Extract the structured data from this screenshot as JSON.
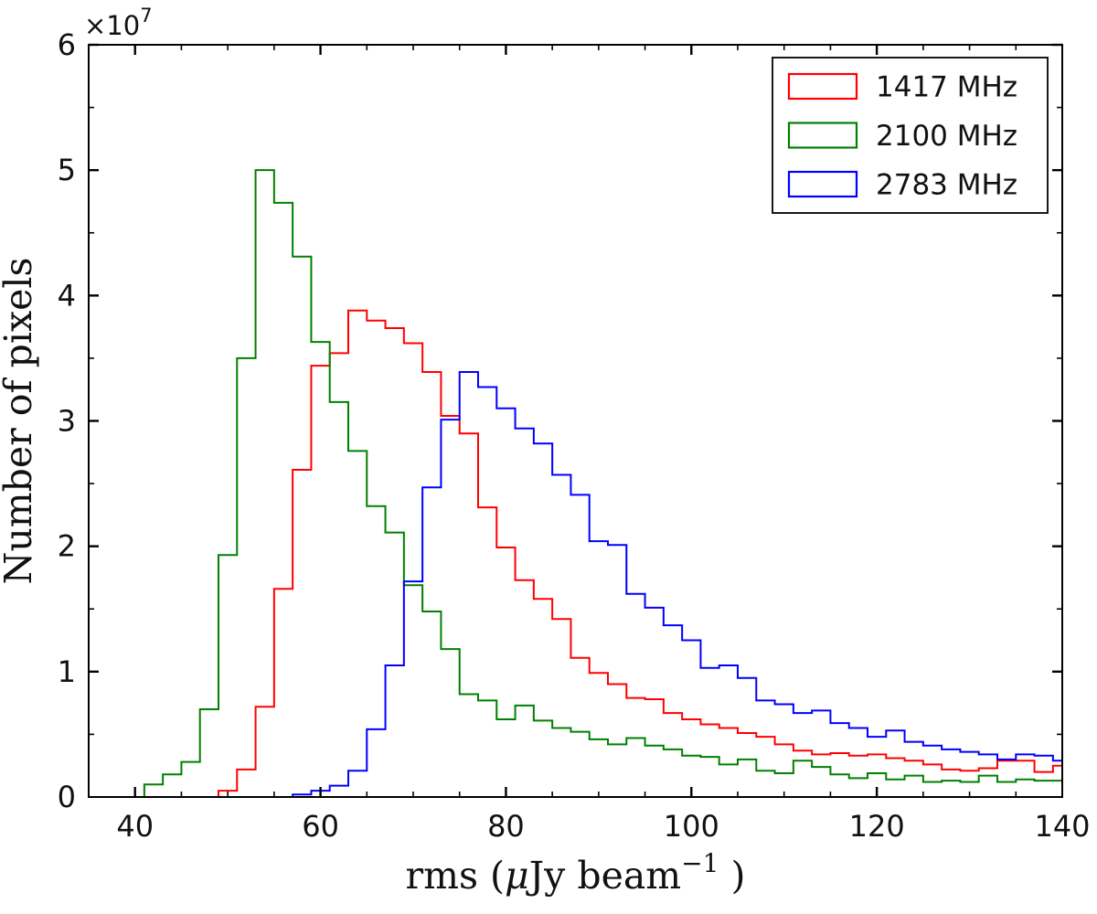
{
  "figure": {
    "background": "#ffffff",
    "axis_color": "#000000",
    "text_color": "#111111"
  },
  "chart_data": {
    "type": "step-histogram",
    "title": "",
    "xlabel": {
      "prefix": "rms (",
      "mu": "μ",
      "mid": "Jy beam",
      "sup": "−1",
      "close": " )"
    },
    "ylabel": "Number of pixels",
    "y_offset_text": {
      "base": "×10",
      "exp": "7"
    },
    "xlim": [
      35,
      140
    ],
    "ylim_e7": [
      0,
      6
    ],
    "x_major_ticks": [
      40,
      60,
      80,
      100,
      120,
      140
    ],
    "x_minor_step": 5,
    "y_major_ticks_e7": [
      0,
      1,
      2,
      3,
      4,
      5,
      6
    ],
    "y_minor_step_e7": 0.5,
    "grid": "off",
    "tick_direction": "in",
    "bin_width": 2,
    "series": [
      {
        "name": "1417 MHz",
        "color": "#ff0000",
        "bin_start": 49,
        "counts_e7": [
          0.05,
          0.22,
          0.72,
          1.66,
          2.61,
          3.44,
          3.54,
          3.88,
          3.8,
          3.74,
          3.62,
          3.39,
          3.04,
          2.9,
          2.31,
          1.99,
          1.73,
          1.58,
          1.42,
          1.11,
          0.99,
          0.9,
          0.79,
          0.78,
          0.67,
          0.62,
          0.58,
          0.55,
          0.51,
          0.48,
          0.42,
          0.37,
          0.34,
          0.35,
          0.33,
          0.34,
          0.31,
          0.29,
          0.26,
          0.22,
          0.21,
          0.23,
          0.29,
          0.29,
          0.2,
          0.25
        ]
      },
      {
        "name": "2100 MHz",
        "color": "#008000",
        "bin_start": 41,
        "counts_e7": [
          0.1,
          0.18,
          0.28,
          0.7,
          1.93,
          3.5,
          5.0,
          4.74,
          4.31,
          3.63,
          3.15,
          2.76,
          2.32,
          2.11,
          1.69,
          1.48,
          1.18,
          0.82,
          0.77,
          0.62,
          0.73,
          0.61,
          0.55,
          0.52,
          0.46,
          0.42,
          0.47,
          0.41,
          0.38,
          0.33,
          0.32,
          0.26,
          0.3,
          0.21,
          0.19,
          0.29,
          0.24,
          0.18,
          0.15,
          0.19,
          0.14,
          0.17,
          0.12,
          0.13,
          0.12,
          0.17,
          0.12,
          0.14,
          0.13,
          0.13
        ]
      },
      {
        "name": "2783 MHz",
        "color": "#0000ff",
        "bin_start": 57,
        "counts_e7": [
          0.02,
          0.05,
          0.09,
          0.21,
          0.54,
          1.05,
          1.72,
          2.47,
          3.01,
          3.39,
          3.27,
          3.1,
          2.94,
          2.82,
          2.57,
          2.41,
          2.04,
          2.01,
          1.62,
          1.51,
          1.37,
          1.25,
          1.03,
          1.05,
          0.95,
          0.77,
          0.74,
          0.67,
          0.69,
          0.59,
          0.55,
          0.48,
          0.53,
          0.44,
          0.41,
          0.38,
          0.36,
          0.34,
          0.3,
          0.34,
          0.33,
          0.29
        ]
      }
    ],
    "legend": {
      "position": "upper right",
      "entries": [
        "1417 MHz",
        "2100 MHz",
        "2783 MHz"
      ]
    }
  }
}
